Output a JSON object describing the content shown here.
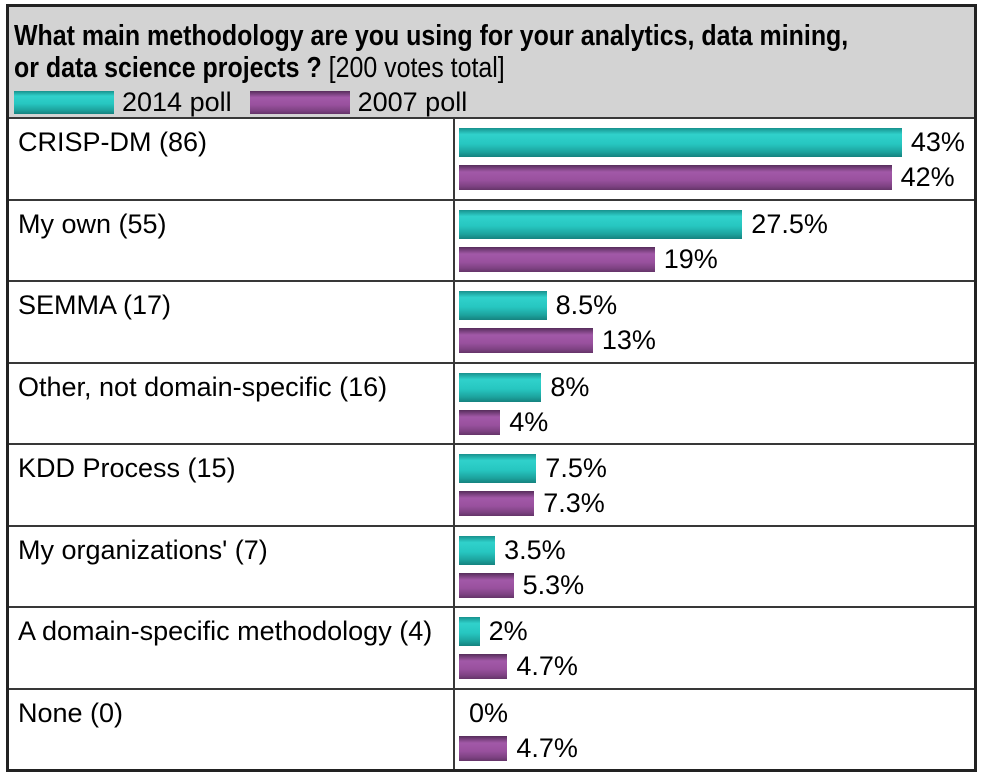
{
  "header": {
    "title_line1": "What main methodology are you using for your analytics, data mining,",
    "title_line2_bold": "or data science projects ?",
    "title_line2_normal": "[200 votes total]",
    "background_color": "#d3d3d3",
    "legend": [
      {
        "label": "2014 poll",
        "color": "#28c7c1"
      },
      {
        "label": "2007 poll",
        "color": "#9b53a0"
      }
    ]
  },
  "chart_data": {
    "type": "bar",
    "orientation": "horizontal",
    "title": "What main methodology are you using for your analytics, data mining, or data science projects ? [200 votes total]",
    "votes_total": 200,
    "categories": [
      "CRISP-DM (86)",
      "My own (55)",
      "SEMMA (17)",
      "Other, not domain-specific (16)",
      "KDD Process (15)",
      "My organizations' (7)",
      "A domain-specific methodology (4)",
      "None (0)"
    ],
    "votes": [
      86,
      55,
      17,
      16,
      15,
      7,
      4,
      0
    ],
    "series": [
      {
        "name": "2014 poll",
        "color": "#28c7c1",
        "values": [
          43,
          27.5,
          8.5,
          8,
          7.5,
          3.5,
          2,
          0
        ],
        "labels": [
          "43%",
          "27.5%",
          "8.5%",
          "8%",
          "7.5%",
          "3.5%",
          "2%",
          "0%"
        ]
      },
      {
        "name": "2007 poll",
        "color": "#9b53a0",
        "values": [
          42,
          19,
          13,
          4,
          7.3,
          5.3,
          4.7,
          4.7
        ],
        "labels": [
          "42%",
          "19%",
          "13%",
          "4%",
          "7.3%",
          "5.3%",
          "4.7%",
          "4.7%"
        ]
      }
    ],
    "xlim": [
      0,
      50
    ],
    "legend_position": "top",
    "grid": false
  }
}
